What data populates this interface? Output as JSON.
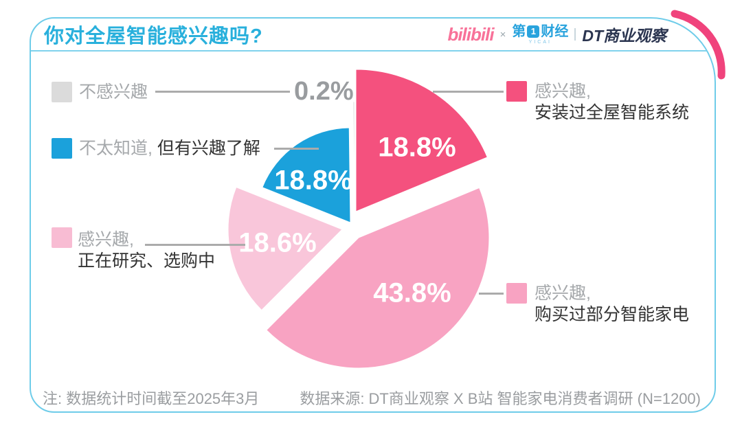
{
  "header": {
    "title": "你对全屋智能感兴趣吗?",
    "logos": {
      "bilibili": "bilibili",
      "cross": "×",
      "yicai_left": "第",
      "yicai_box_glyph": "1",
      "yicai_right": "财经",
      "yicai_sub": "YICAI",
      "separator": "",
      "dt": "DT商业观察"
    }
  },
  "chart_data": {
    "type": "pie",
    "title": "你对全屋智能感兴趣吗?",
    "unit": "percent",
    "order": "clockwise-from-top",
    "slices": [
      {
        "label": "感兴趣, 安装过全屋智能系统",
        "value": 18.8,
        "display": "18.8%",
        "color": "#f4517e"
      },
      {
        "label": "感兴趣, 购买过部分智能家电",
        "value": 43.8,
        "display": "43.8%",
        "color": "#f8a3c2"
      },
      {
        "label": "感兴趣, 正在研究、选购中",
        "value": 18.6,
        "display": "18.6%",
        "color": "#f9c6da"
      },
      {
        "label": "不太知道, 但有兴趣了解",
        "value": 18.8,
        "display": "18.8%",
        "color": "#1ba1db"
      },
      {
        "label": "不感兴趣",
        "value": 0.2,
        "display": "0.2%",
        "color": "#dbdbdb"
      }
    ]
  },
  "legend": {
    "left": [
      {
        "label": "不感兴趣",
        "percent": "0.2%",
        "swatch": "#dbdbdb"
      },
      {
        "prefix": "不太知道,",
        "rest": " 但有兴趣了解",
        "swatch": "#1ba1db"
      },
      {
        "prefix": "感兴趣,",
        "rest": "正在研究、选购中",
        "swatch": "#f8bcd3"
      }
    ],
    "right": [
      {
        "prefix": "感兴趣,",
        "rest": "安装过全屋智能系统",
        "swatch": "#f4517e"
      },
      {
        "prefix": "感兴趣,",
        "rest": "购买过部分智能家电",
        "swatch": "#f8a3c2"
      }
    ]
  },
  "footer": {
    "note": "注: 数据统计时间截至2025年3月",
    "source": "数据来源: DT商业观察 X B站 智能家电消费者调研 (N=1200)"
  },
  "colors": {
    "accent_blue": "#29b0dc",
    "card_border": "#6ecce9",
    "deco_pink": "#f0437c",
    "legend_gray": "#a5a8ab",
    "legend_dark": "#333333"
  }
}
